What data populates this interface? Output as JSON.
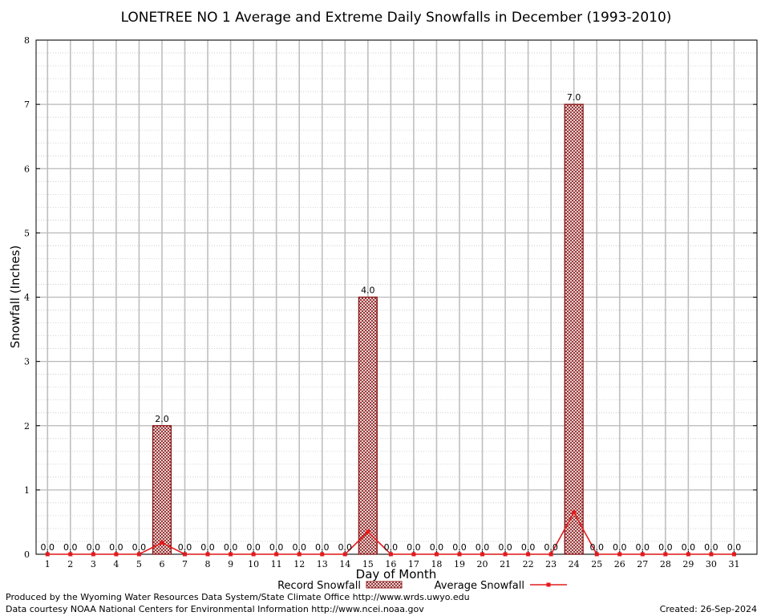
{
  "chart_data": {
    "type": "bar",
    "title": "LONETREE NO 1 Average and Extreme Daily Snowfalls in December (1993-2010)",
    "xlabel": "Day of Month",
    "ylabel": "Snowfall (Inches)",
    "ylim": [
      0,
      8
    ],
    "yticks": [
      0,
      1,
      2,
      3,
      4,
      5,
      6,
      7,
      8
    ],
    "x": [
      1,
      2,
      3,
      4,
      5,
      6,
      7,
      8,
      9,
      10,
      11,
      12,
      13,
      14,
      15,
      16,
      17,
      18,
      19,
      20,
      21,
      22,
      23,
      24,
      25,
      26,
      27,
      28,
      29,
      30,
      31
    ],
    "grid": true,
    "series": [
      {
        "name": "Record Snowfall",
        "kind": "bar",
        "color": "#8b1a1a",
        "values": [
          0,
          0,
          0,
          0,
          0,
          2.0,
          0,
          0,
          0,
          0,
          0,
          0,
          0,
          0,
          4.0,
          0,
          0,
          0,
          0,
          0,
          0,
          0,
          0,
          7.0,
          0,
          0,
          0,
          0,
          0,
          0,
          0
        ],
        "labels": [
          "0.0",
          "0.0",
          "0.0",
          "0.0",
          "0.0",
          "2.0",
          "0.0",
          "0.0",
          "0.0",
          "0.0",
          "0.0",
          "0.0",
          "0.0",
          "0.0",
          "4.0",
          "0.0",
          "0.0",
          "0.0",
          "0.0",
          "0.0",
          "0.0",
          "0.0",
          "0.0",
          "7.0",
          "0.0",
          "0.0",
          "0.0",
          "0.0",
          "0.0",
          "0.0",
          "0.0"
        ]
      },
      {
        "name": "Average Snowfall",
        "kind": "line",
        "color": "#e41a1c",
        "values": [
          0,
          0,
          0,
          0,
          0,
          0.18,
          0,
          0,
          0,
          0,
          0,
          0,
          0,
          0,
          0.35,
          0,
          0,
          0,
          0,
          0,
          0,
          0,
          0,
          0.65,
          0,
          0,
          0,
          0,
          0,
          0,
          0
        ]
      }
    ],
    "legend_position": "bottom-center"
  },
  "footer": {
    "produced_by": "Produced by the Wyoming Water Resources Data System/State Climate Office http://www.wrds.uwyo.edu",
    "courtesy": "Data courtesy NOAA National Centers for Environmental Information http://www.ncei.noaa.gov",
    "created": "Created:  26-Sep-2024"
  }
}
